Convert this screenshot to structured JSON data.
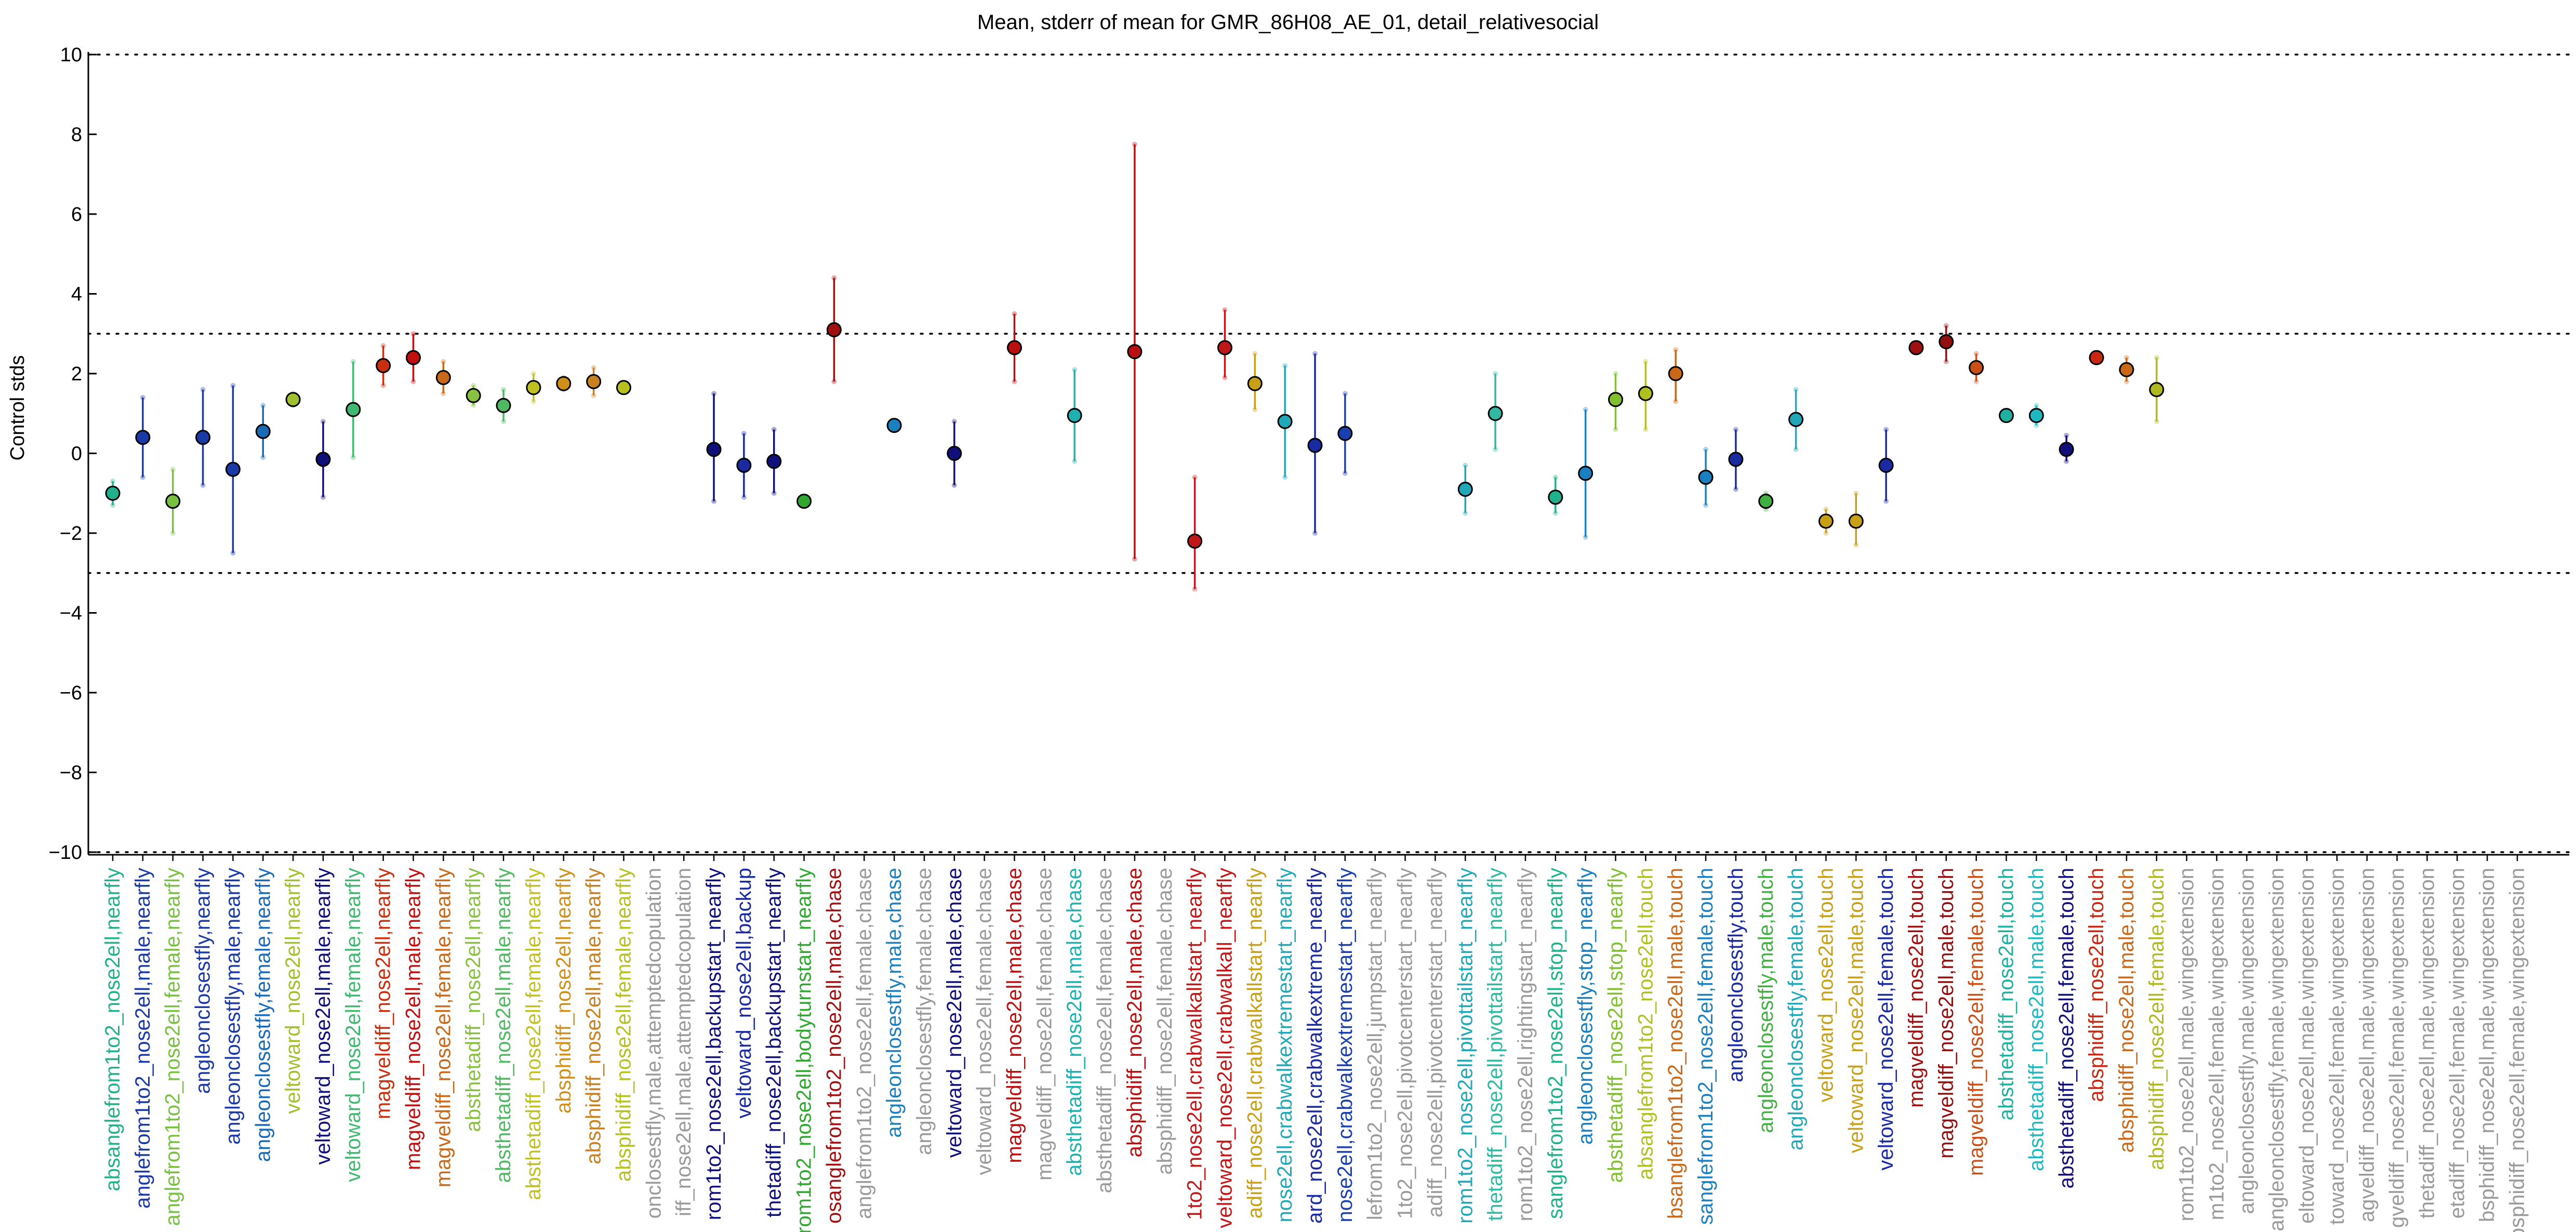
{
  "chart_data": {
    "type": "scatter",
    "title": "Mean, stderr of mean for GMR_86H08_AE_01, detail_relativesocial",
    "xlabel": "",
    "ylabel": "Control stds",
    "ylim": [
      -10,
      10
    ],
    "yticks": [
      "10",
      "8",
      "6",
      "4",
      "2",
      "0",
      "−2",
      "−4",
      "−6",
      "−8",
      "−10"
    ],
    "reference_lines": [
      -10,
      -3,
      3,
      10
    ],
    "grid": false,
    "points": [
      {
        "label": "absanglefrom1to2_nose2ell,nearfly",
        "mean": -1.0,
        "err_lo": -1.3,
        "err_hi": -0.7,
        "color": "#20b08c"
      },
      {
        "label": "anglefrom1to2_nose2ell,male,nearfly",
        "mean": 0.4,
        "err_lo": -0.6,
        "err_hi": 1.4,
        "color": "#1a3aa8"
      },
      {
        "label": "anglefrom1to2_nose2ell,female,nearfly",
        "mean": -1.2,
        "err_lo": -2.0,
        "err_hi": -0.4,
        "color": "#78c040"
      },
      {
        "label": "angleonclosestfly,nearfly",
        "mean": 0.4,
        "err_lo": -0.8,
        "err_hi": 1.6,
        "color": "#1a3aa8"
      },
      {
        "label": "angleonclosestfly,male,nearfly",
        "mean": -0.4,
        "err_lo": -2.5,
        "err_hi": 1.7,
        "color": "#1a3aa8"
      },
      {
        "label": "angleonclosestfly,female,nearfly",
        "mean": 0.55,
        "err_lo": -0.1,
        "err_hi": 1.2,
        "color": "#1a6ab8"
      },
      {
        "label": "veltoward_nose2ell,nearfly",
        "mean": 1.35,
        "err_lo": 1.2,
        "err_hi": 1.5,
        "color": "#a0c030"
      },
      {
        "label": "veltoward_nose2ell,male,nearfly",
        "mean": -0.15,
        "err_lo": -1.1,
        "err_hi": 0.8,
        "color": "#10107a"
      },
      {
        "label": "veltoward_nose2ell,female,nearfly",
        "mean": 1.1,
        "err_lo": -0.1,
        "err_hi": 2.3,
        "color": "#40b870"
      },
      {
        "label": "magveldiff_nose2ell,nearfly",
        "mean": 2.2,
        "err_lo": 1.7,
        "err_hi": 2.7,
        "color": "#c83010"
      },
      {
        "label": "magveldiff_nose2ell,male,nearfly",
        "mean": 2.4,
        "err_lo": 1.8,
        "err_hi": 3.0,
        "color": "#c01010"
      },
      {
        "label": "magveldiff_nose2ell,female,nearfly",
        "mean": 1.9,
        "err_lo": 1.5,
        "err_hi": 2.3,
        "color": "#c86818"
      },
      {
        "label": "absthetadiff_nose2ell,nearfly",
        "mean": 1.45,
        "err_lo": 1.2,
        "err_hi": 1.7,
        "color": "#88c040"
      },
      {
        "label": "absthetadiff_nose2ell,male,nearfly",
        "mean": 1.2,
        "err_lo": 0.8,
        "err_hi": 1.6,
        "color": "#50b860"
      },
      {
        "label": "absthetadiff_nose2ell,female,nearfly",
        "mean": 1.65,
        "err_lo": 1.3,
        "err_hi": 2.0,
        "color": "#c0c020"
      },
      {
        "label": "absphidiff_nose2ell,nearfly",
        "mean": 1.75,
        "err_lo": 1.6,
        "err_hi": 1.9,
        "color": "#d09018"
      },
      {
        "label": "absphidiff_nose2ell,male,nearfly",
        "mean": 1.8,
        "err_lo": 1.45,
        "err_hi": 2.15,
        "color": "#c88020"
      },
      {
        "label": "absphidiff_nose2ell,female,nearfly",
        "mean": 1.65,
        "err_lo": 1.55,
        "err_hi": 1.75,
        "color": "#b8c020"
      },
      {
        "label": "onclosestfly,male,attemptedcopulation",
        "mean": null,
        "err_lo": null,
        "err_hi": null,
        "color": "#9a9a9a"
      },
      {
        "label": "iff_nose2ell,male,attemptedcopulation",
        "mean": null,
        "err_lo": null,
        "err_hi": null,
        "color": "#9a9a9a"
      },
      {
        "label": "rom1to2_nose2ell,backupstart_nearfly",
        "mean": 0.1,
        "err_lo": -1.2,
        "err_hi": 1.5,
        "color": "#10107a"
      },
      {
        "label": "veltoward_nose2ell,backup",
        "mean": -0.3,
        "err_lo": -1.1,
        "err_hi": 0.5,
        "color": "#1a2aa0"
      },
      {
        "label": "thetadiff_nose2ell,backupstart_nearfly",
        "mean": -0.2,
        "err_lo": -1.0,
        "err_hi": 0.6,
        "color": "#10107a"
      },
      {
        "label": "rom1to2_nose2ell,bodyturnstart_nearfly",
        "mean": -1.2,
        "err_lo": -1.3,
        "err_hi": -1.1,
        "color": "#30a830"
      },
      {
        "label": "osanglefrom1to2_nose2ell,male,chase",
        "mean": 3.1,
        "err_lo": 1.8,
        "err_hi": 4.4,
        "color": "#a01010"
      },
      {
        "label": "anglefrom1to2_nose2ell,female,chase",
        "mean": null,
        "err_lo": null,
        "err_hi": null,
        "color": "#9a9a9a"
      },
      {
        "label": "angleonclosestfly,male,chase",
        "mean": 0.7,
        "err_lo": 0.6,
        "err_hi": 0.8,
        "color": "#1a80c0"
      },
      {
        "label": "angleonclosestfly,female,chase",
        "mean": null,
        "err_lo": null,
        "err_hi": null,
        "color": "#9a9a9a"
      },
      {
        "label": "veltoward_nose2ell,male,chase",
        "mean": 0.0,
        "err_lo": -0.8,
        "err_hi": 0.8,
        "color": "#10107a"
      },
      {
        "label": "veltoward_nose2ell,female,chase",
        "mean": null,
        "err_lo": null,
        "err_hi": null,
        "color": "#9a9a9a"
      },
      {
        "label": "magveldiff_nose2ell,male,chase",
        "mean": 2.65,
        "err_lo": 1.8,
        "err_hi": 3.5,
        "color": "#b81010"
      },
      {
        "label": "magveldiff_nose2ell,female,chase",
        "mean": null,
        "err_lo": null,
        "err_hi": null,
        "color": "#9a9a9a"
      },
      {
        "label": "absthetadiff_nose2ell,male,chase",
        "mean": 0.95,
        "err_lo": -0.2,
        "err_hi": 2.1,
        "color": "#20b0b0"
      },
      {
        "label": "absthetadiff_nose2ell,female,chase",
        "mean": null,
        "err_lo": null,
        "err_hi": null,
        "color": "#9a9a9a"
      },
      {
        "label": "absphidiff_nose2ell,male,chase",
        "mean": 2.55,
        "err_lo": -2.65,
        "err_hi": 7.75,
        "color": "#b81010"
      },
      {
        "label": "absphidiff_nose2ell,female,chase",
        "mean": null,
        "err_lo": null,
        "err_hi": null,
        "color": "#9a9a9a"
      },
      {
        "label": "1to2_nose2ell,crabwalkallstart_nearfly",
        "mean": -2.2,
        "err_lo": -3.4,
        "err_hi": -0.6,
        "color": "#c01818"
      },
      {
        "label": "veltoward_nose2ell,crabwalkall_nearfly",
        "mean": 2.65,
        "err_lo": 1.9,
        "err_hi": 3.6,
        "color": "#c01818"
      },
      {
        "label": "adiff_nose2ell,crabwalkallstart_nearfly",
        "mean": 1.75,
        "err_lo": 1.1,
        "err_hi": 2.5,
        "color": "#c8a018"
      },
      {
        "label": "nose2ell,crabwalkextremestart_nearfly",
        "mean": 0.8,
        "err_lo": -0.6,
        "err_hi": 2.2,
        "color": "#20a8b8"
      },
      {
        "label": "ard_nose2ell,crabwalkextreme_nearfly",
        "mean": 0.2,
        "err_lo": -2.0,
        "err_hi": 2.5,
        "color": "#1a2aa0"
      },
      {
        "label": "nose2ell,crabwalkextremestart_nearfly",
        "mean": 0.5,
        "err_lo": -0.5,
        "err_hi": 1.5,
        "color": "#1a40b0"
      },
      {
        "label": "lefrom1to2_nose2ell,jumpstart_nearfly",
        "mean": null,
        "err_lo": null,
        "err_hi": null,
        "color": "#9a9a9a"
      },
      {
        "label": "1to2_nose2ell,pivotcenterstart_nearfly",
        "mean": null,
        "err_lo": null,
        "err_hi": null,
        "color": "#9a9a9a"
      },
      {
        "label": "adiff_nose2ell,pivotcenterstart_nearfly",
        "mean": null,
        "err_lo": null,
        "err_hi": null,
        "color": "#9a9a9a"
      },
      {
        "label": "rom1to2_nose2ell,pivottailstart_nearfly",
        "mean": -0.9,
        "err_lo": -1.5,
        "err_hi": -0.3,
        "color": "#20a8b8"
      },
      {
        "label": "thetadiff_nose2ell,pivottailstart_nearfly",
        "mean": 1.0,
        "err_lo": 0.1,
        "err_hi": 2.0,
        "color": "#30b8a0"
      },
      {
        "label": "rom1to2_nose2ell,rightingstart_nearfly",
        "mean": null,
        "err_lo": null,
        "err_hi": null,
        "color": "#9a9a9a"
      },
      {
        "label": "sanglefrom1to2_nose2ell,stop_nearfly",
        "mean": -1.1,
        "err_lo": -1.5,
        "err_hi": -0.6,
        "color": "#20b08c"
      },
      {
        "label": "angleonclosestfly,stop_nearfly",
        "mean": -0.5,
        "err_lo": -2.1,
        "err_hi": 1.1,
        "color": "#1a80c0"
      },
      {
        "label": "absthetadiff_nose2ell,stop_nearfly",
        "mean": 1.35,
        "err_lo": 0.6,
        "err_hi": 2.0,
        "color": "#80c030"
      },
      {
        "label": "absanglefrom1to2_nose2ell,touch",
        "mean": 1.5,
        "err_lo": 0.6,
        "err_hi": 2.3,
        "color": "#b0c020"
      },
      {
        "label": "bsanglefrom1to2_nose2ell,male,touch",
        "mean": 2.0,
        "err_lo": 1.3,
        "err_hi": 2.6,
        "color": "#c86818"
      },
      {
        "label": "sanglefrom1to2_nose2ell,female,touch",
        "mean": -0.6,
        "err_lo": -1.3,
        "err_hi": 0.1,
        "color": "#1a80c0"
      },
      {
        "label": "angleonclosestfly,touch",
        "mean": -0.15,
        "err_lo": -0.9,
        "err_hi": 0.6,
        "color": "#1a2aa0"
      },
      {
        "label": "angleonclosestfly,male,touch",
        "mean": -1.2,
        "err_lo": -1.4,
        "err_hi": -1.0,
        "color": "#40b040"
      },
      {
        "label": "angleonclosestfly,female,touch",
        "mean": 0.85,
        "err_lo": 0.1,
        "err_hi": 1.6,
        "color": "#20a8b8"
      },
      {
        "label": "veltoward_nose2ell,touch",
        "mean": -1.7,
        "err_lo": -2.0,
        "err_hi": -1.4,
        "color": "#c8a018"
      },
      {
        "label": "veltoward_nose2ell,male,touch",
        "mean": -1.7,
        "err_lo": -2.3,
        "err_hi": -1.0,
        "color": "#c8a018"
      },
      {
        "label": "veltoward_nose2ell,female,touch",
        "mean": -0.3,
        "err_lo": -1.2,
        "err_hi": 0.6,
        "color": "#1a2aa0"
      },
      {
        "label": "magveldiff_nose2ell,touch",
        "mean": 2.65,
        "err_lo": 2.55,
        "err_hi": 2.75,
        "color": "#a01010"
      },
      {
        "label": "magveldiff_nose2ell,male,touch",
        "mean": 2.8,
        "err_lo": 2.3,
        "err_hi": 3.2,
        "color": "#901010"
      },
      {
        "label": "magveldiff_nose2ell,female,touch",
        "mean": 2.15,
        "err_lo": 1.8,
        "err_hi": 2.5,
        "color": "#c85018"
      },
      {
        "label": "absthetadiff_nose2ell,touch",
        "mean": 0.95,
        "err_lo": 0.85,
        "err_hi": 1.05,
        "color": "#20b0a0"
      },
      {
        "label": "absthetadiff_nose2ell,male,touch",
        "mean": 0.95,
        "err_lo": 0.7,
        "err_hi": 1.2,
        "color": "#20b8c0"
      },
      {
        "label": "absthetadiff_nose2ell,female,touch",
        "mean": 0.1,
        "err_lo": -0.2,
        "err_hi": 0.45,
        "color": "#10107a"
      },
      {
        "label": "absphidiff_nose2ell,touch",
        "mean": 2.4,
        "err_lo": 2.3,
        "err_hi": 2.5,
        "color": "#c82810"
      },
      {
        "label": "absphidiff_nose2ell,male,touch",
        "mean": 2.1,
        "err_lo": 1.8,
        "err_hi": 2.4,
        "color": "#c86818"
      },
      {
        "label": "absphidiff_nose2ell,female,touch",
        "mean": 1.6,
        "err_lo": 0.8,
        "err_hi": 2.4,
        "color": "#b0b820"
      },
      {
        "label": "rom1to2_nose2ell,male,wingextension",
        "mean": null,
        "err_lo": null,
        "err_hi": null,
        "color": "#9a9a9a"
      },
      {
        "label": "m1to2_nose2ell,female,wingextension",
        "mean": null,
        "err_lo": null,
        "err_hi": null,
        "color": "#9a9a9a"
      },
      {
        "label": "angleonclosestfly,male,wingextension",
        "mean": null,
        "err_lo": null,
        "err_hi": null,
        "color": "#9a9a9a"
      },
      {
        "label": "angleonclosestfly,female,wingextension",
        "mean": null,
        "err_lo": null,
        "err_hi": null,
        "color": "#9a9a9a"
      },
      {
        "label": "eltoward_nose2ell,male,wingextension",
        "mean": null,
        "err_lo": null,
        "err_hi": null,
        "color": "#9a9a9a"
      },
      {
        "label": "toward_nose2ell,female,wingextension",
        "mean": null,
        "err_lo": null,
        "err_hi": null,
        "color": "#9a9a9a"
      },
      {
        "label": "agveldiff_nose2ell,male,wingextension",
        "mean": null,
        "err_lo": null,
        "err_hi": null,
        "color": "#9a9a9a"
      },
      {
        "label": "gveldiff_nose2ell,female,wingextension",
        "mean": null,
        "err_lo": null,
        "err_hi": null,
        "color": "#9a9a9a"
      },
      {
        "label": "thetadiff_nose2ell,male,wingextension",
        "mean": null,
        "err_lo": null,
        "err_hi": null,
        "color": "#9a9a9a"
      },
      {
        "label": "etadiff_nose2ell,female,wingextension",
        "mean": null,
        "err_lo": null,
        "err_hi": null,
        "color": "#9a9a9a"
      },
      {
        "label": "bsphidiff_nose2ell,male,wingextension",
        "mean": null,
        "err_lo": null,
        "err_hi": null,
        "color": "#9a9a9a"
      },
      {
        "label": "absphidiff_nose2ell,female,wingextension",
        "mean": null,
        "err_lo": null,
        "err_hi": null,
        "color": "#9a9a9a"
      }
    ]
  }
}
